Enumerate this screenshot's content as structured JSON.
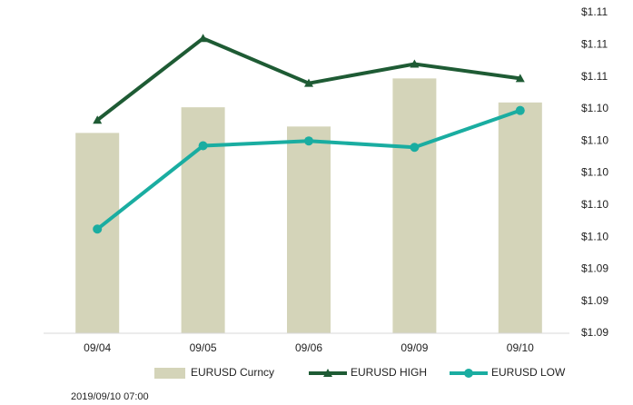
{
  "chart_data": {
    "type": "combo",
    "categories": [
      "09/04",
      "09/05",
      "09/06",
      "09/09",
      "09/10"
    ],
    "series": [
      {
        "name": "EURUSD Curncy",
        "type": "bar",
        "color": "#d4d4b9",
        "values": [
          1.1025,
          1.1041,
          1.1029,
          1.1059,
          1.1044
        ]
      },
      {
        "name": "EURUSD HIGH",
        "type": "line",
        "marker": "triangle",
        "color": "#1e5b34",
        "values": [
          1.1033,
          1.1084,
          1.1056,
          1.1068,
          1.1059
        ]
      },
      {
        "name": "EURUSD LOW",
        "type": "line",
        "marker": "circle",
        "color": "#1aada1",
        "values": [
          1.0965,
          1.1017,
          1.102,
          1.1016,
          1.1039
        ]
      }
    ],
    "ylim": [
      1.09,
      1.11
    ],
    "yticks": [
      {
        "value": 1.09,
        "label": "$1.09"
      },
      {
        "value": 1.092,
        "label": "$1.09"
      },
      {
        "value": 1.094,
        "label": "$1.09"
      },
      {
        "value": 1.096,
        "label": "$1.10"
      },
      {
        "value": 1.098,
        "label": "$1.10"
      },
      {
        "value": 1.1,
        "label": "$1.10"
      },
      {
        "value": 1.102,
        "label": "$1.10"
      },
      {
        "value": 1.104,
        "label": "$1.10"
      },
      {
        "value": 1.106,
        "label": "$1.11"
      },
      {
        "value": 1.108,
        "label": "$1.11"
      },
      {
        "value": 1.11,
        "label": "$1.11"
      }
    ],
    "grid": false,
    "legend": "bottom"
  },
  "footer": "2019/09/10 07:00"
}
